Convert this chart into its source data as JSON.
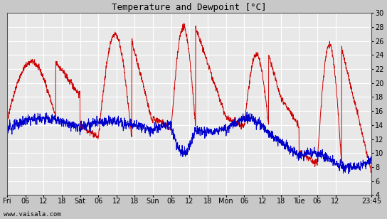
{
  "title": "Temperature and Dewpoint [°C]",
  "ylim": [
    4,
    30
  ],
  "yticks": [
    4,
    6,
    8,
    10,
    12,
    14,
    16,
    18,
    20,
    22,
    24,
    26,
    28,
    30
  ],
  "temp_color": "#cc0000",
  "dew_color": "#0000cc",
  "plot_bg_color": "#e8e8e8",
  "fig_bg_color": "#c8c8c8",
  "grid_color": "white",
  "bottom_text": "www.vaisala.com",
  "xtick_labels": [
    "Fri",
    "06",
    "12",
    "18",
    "Sat",
    "06",
    "12",
    "18",
    "Sun",
    "06",
    "12",
    "18",
    "Mon",
    "06",
    "12",
    "18",
    "Tue",
    "06",
    "12",
    "23:45"
  ],
  "xtick_positions": [
    0,
    6,
    12,
    18,
    24,
    30,
    36,
    42,
    48,
    54,
    60,
    66,
    72,
    78,
    84,
    90,
    96,
    102,
    108,
    119.75
  ],
  "total_hours": 119.75,
  "line_width": 0.7,
  "figsize": [
    5.44,
    3.08
  ],
  "dpi": 100
}
